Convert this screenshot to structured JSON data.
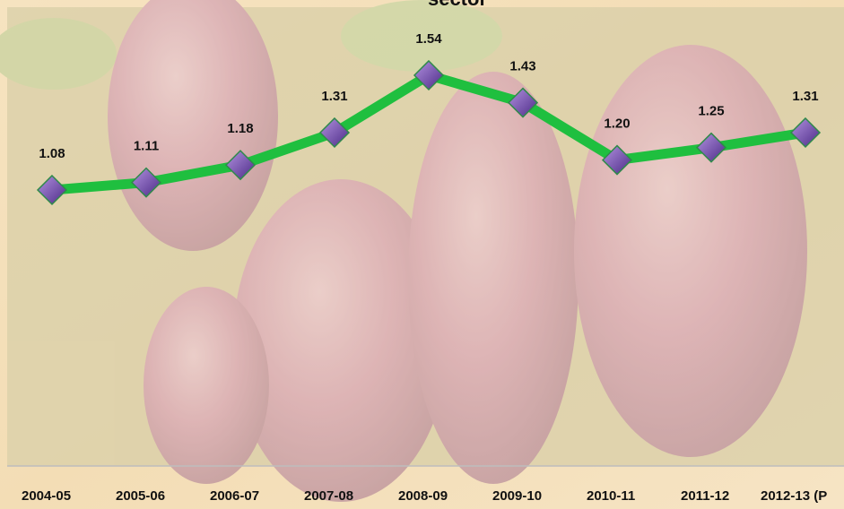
{
  "chart_data": {
    "type": "line",
    "title": "sector",
    "categories": [
      "2004-05",
      "2005-06",
      "2006-07",
      "2007-08",
      "2008-09",
      "2009-10",
      "2010-11",
      "2011-12",
      "2012-13 (P"
    ],
    "values": [
      1.08,
      1.11,
      1.18,
      1.31,
      1.54,
      1.43,
      1.2,
      1.25,
      1.31
    ],
    "value_labels": [
      "1.08",
      "1.11",
      "1.18",
      "1.31",
      "1.54",
      "1.43",
      "1.20",
      "1.25",
      "1.31"
    ],
    "color": "#1fbf3f",
    "marker_color": "#7b4fb8"
  }
}
